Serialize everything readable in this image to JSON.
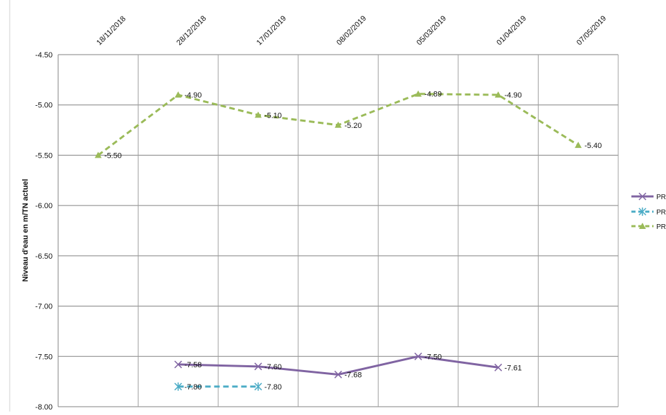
{
  "chart_data": {
    "type": "line",
    "title": "",
    "xlabel": "",
    "ylabel": "Niveau d'eau en m/TN actuel",
    "categories": [
      "18/11/2018",
      "28/12/2018",
      "17/01/2019",
      "08/02/2019",
      "05/03/2019",
      "01/04/2019",
      "07/05/2019"
    ],
    "ylim": [
      -8.0,
      -4.5
    ],
    "yticks": [
      "-4.50",
      "-5.00",
      "-5.50",
      "-6.00",
      "-6.50",
      "-7.00",
      "-7.50",
      "-8.00"
    ],
    "grid": true,
    "legend_position": "right",
    "series": [
      {
        "name": "PR",
        "color": "#8064a2",
        "dash": false,
        "marker": "x",
        "values": [
          null,
          -7.58,
          -7.6,
          -7.68,
          -7.5,
          -7.61,
          null
        ],
        "labels": [
          null,
          "-7.58",
          "-7.60",
          "-7.68",
          "-7.50",
          "-7.61",
          null
        ]
      },
      {
        "name": "PR",
        "color": "#4bacc6",
        "dash": true,
        "marker": "star",
        "values": [
          null,
          -7.8,
          -7.8,
          null,
          null,
          null,
          null
        ],
        "labels": [
          null,
          "-7.80",
          "-7.80",
          null,
          null,
          null,
          null
        ]
      },
      {
        "name": "PR",
        "color": "#9bbb59",
        "dash": true,
        "marker": "triangle",
        "values": [
          -5.5,
          -4.9,
          -5.1,
          -5.2,
          -4.89,
          -4.9,
          -5.4
        ],
        "labels": [
          "-5.50",
          "-4.90",
          "-5.10",
          "-5.20",
          "-4.89",
          "-4.90",
          "-5.40"
        ]
      }
    ]
  }
}
